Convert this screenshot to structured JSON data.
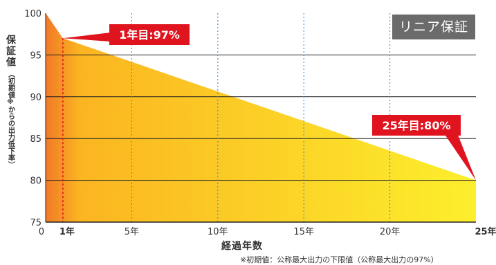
{
  "chart_data": {
    "type": "area",
    "title": "",
    "badge": "リニア保証",
    "ylabel_main": "保証値",
    "ylabel_sub": "（初期値※からの出力低下率）",
    "xlabel": "経過年数",
    "footnote": "※初期値：公称最大出力の下限値（公称最大出力の97%）",
    "ylim": [
      75,
      100
    ],
    "xlim": [
      0,
      25
    ],
    "y_ticks": [
      75,
      80,
      85,
      90,
      95,
      100
    ],
    "x_ticks": [
      {
        "x": 0,
        "label": "0",
        "bold": false
      },
      {
        "x": 1,
        "label": "1年",
        "bold": true
      },
      {
        "x": 5,
        "label": "5年",
        "bold": false
      },
      {
        "x": 10,
        "label": "10年",
        "bold": false
      },
      {
        "x": 15,
        "label": "15年",
        "bold": false
      },
      {
        "x": 20,
        "label": "20年",
        "bold": false
      },
      {
        "x": 25,
        "label": "25年",
        "bold": true
      }
    ],
    "series": [
      {
        "x": [
          0,
          1,
          25
        ],
        "y": [
          100,
          97,
          80
        ]
      }
    ],
    "annotations": [
      {
        "x": 1,
        "y": 97,
        "text": "1年目:97%"
      },
      {
        "x": 25,
        "y": 80,
        "text": "25年目:80%"
      }
    ],
    "colors": {
      "area_start": "#f07a28",
      "area_mid": "#fbb521",
      "area_end": "#fcef2c",
      "callout": "#e0141e",
      "year1_line": "#e0141e",
      "year_guides": "#3a8ed6",
      "gridline": "#222222"
    }
  }
}
